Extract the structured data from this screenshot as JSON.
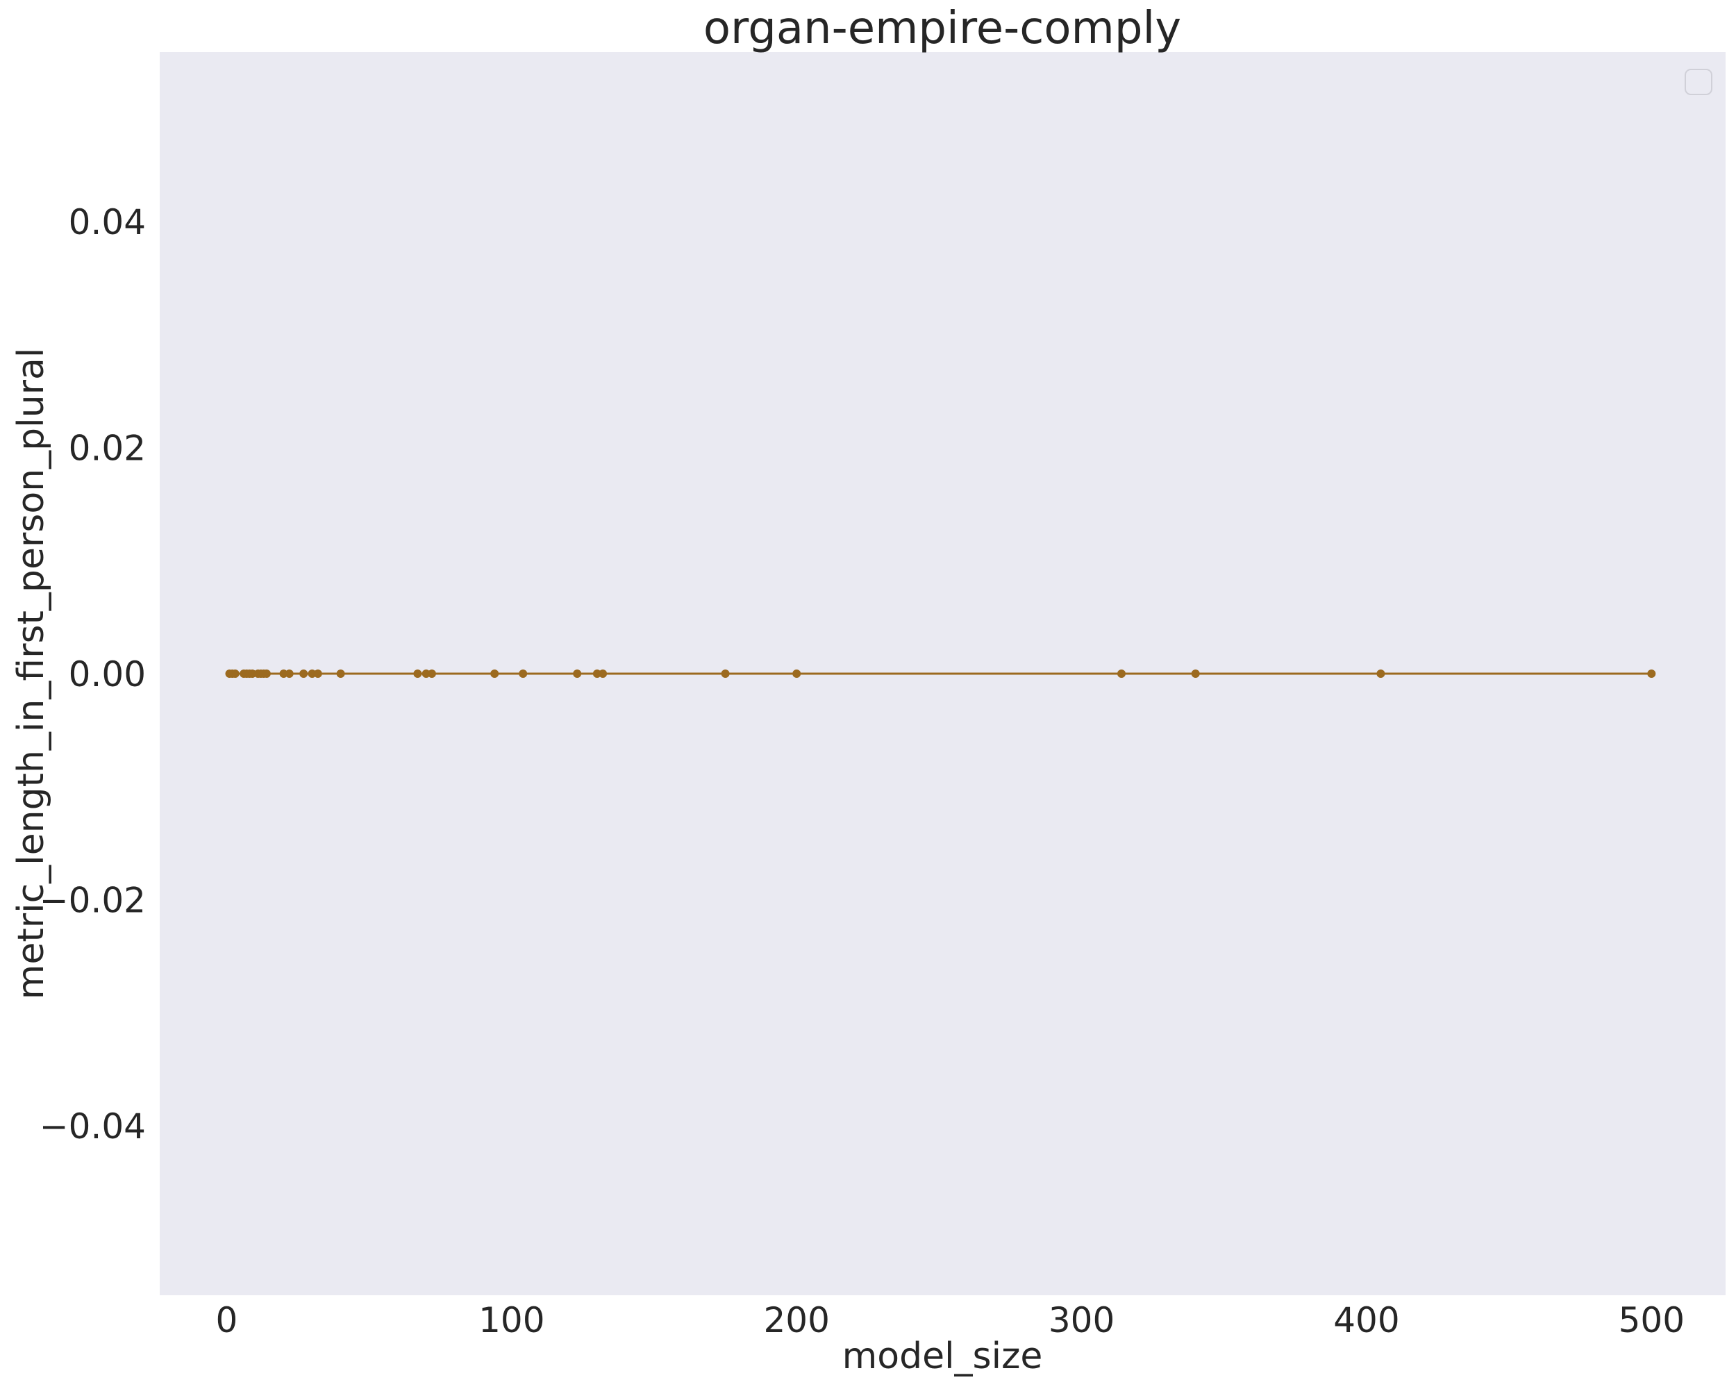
{
  "chart_data": {
    "type": "line",
    "title": "organ-empire-comply",
    "xlabel": "model_size",
    "ylabel": "metric_length_in_first_person_plural",
    "xlim": [
      -23.5,
      526
    ],
    "ylim": [
      -0.055,
      0.055
    ],
    "xticks": [
      0,
      100,
      200,
      300,
      400,
      500
    ],
    "xtick_labels": [
      "0",
      "100",
      "200",
      "300",
      "400",
      "500"
    ],
    "yticks": [
      -0.04,
      -0.02,
      0.0,
      0.02,
      0.04
    ],
    "ytick_labels": [
      "−0.04",
      "−0.02",
      "0.00",
      "0.02",
      "0.04"
    ],
    "grid": false,
    "legend": "top-right (empty)",
    "series": [
      {
        "color": "#9c6a1f",
        "x": [
          1,
          2,
          3,
          6,
          7,
          8,
          9,
          11,
          12,
          13,
          14,
          20,
          22,
          27,
          30,
          32,
          40,
          67,
          70,
          72,
          94,
          104,
          123,
          130,
          132,
          175,
          200,
          314,
          340,
          405,
          500
        ],
        "y": [
          0,
          0,
          0,
          0,
          0,
          0,
          0,
          0,
          0,
          0,
          0,
          0,
          0,
          0,
          0,
          0,
          0,
          0,
          0,
          0,
          0,
          0,
          0,
          0,
          0,
          0,
          0,
          0,
          0,
          0,
          0
        ]
      }
    ]
  }
}
